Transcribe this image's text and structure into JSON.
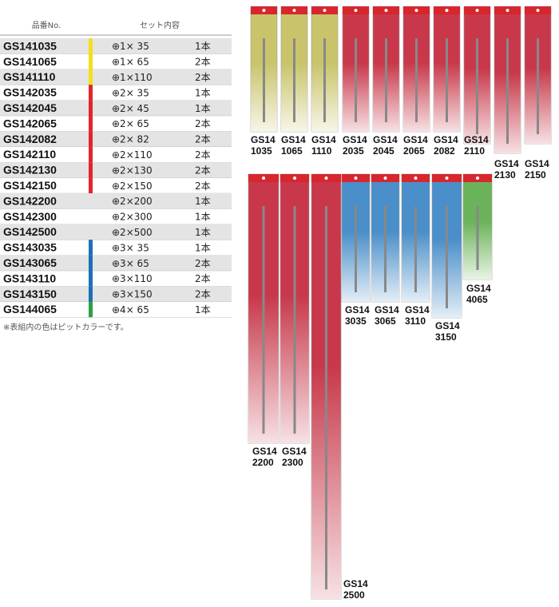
{
  "table": {
    "headers": [
      "品番No.",
      "セット内容"
    ],
    "rows": [
      {
        "code": "GS141035",
        "spec": "⊕1× 35",
        "qty": "1本",
        "color": "#f2e01a"
      },
      {
        "code": "GS141065",
        "spec": "⊕1× 65",
        "qty": "2本",
        "color": "#f2e01a"
      },
      {
        "code": "GS141110",
        "spec": "⊕1×110",
        "qty": "2本",
        "color": "#f2e01a"
      },
      {
        "code": "GS142035",
        "spec": "⊕2× 35",
        "qty": "1本",
        "color": "#e0262b"
      },
      {
        "code": "GS142045",
        "spec": "⊕2× 45",
        "qty": "1本",
        "color": "#e0262b"
      },
      {
        "code": "GS142065",
        "spec": "⊕2× 65",
        "qty": "2本",
        "color": "#e0262b"
      },
      {
        "code": "GS142082",
        "spec": "⊕2× 82",
        "qty": "2本",
        "color": "#e0262b"
      },
      {
        "code": "GS142110",
        "spec": "⊕2×110",
        "qty": "2本",
        "color": "#e0262b"
      },
      {
        "code": "GS142130",
        "spec": "⊕2×130",
        "qty": "2本",
        "color": "#e0262b"
      },
      {
        "code": "GS142150",
        "spec": "⊕2×150",
        "qty": "2本",
        "color": "#e0262b"
      },
      {
        "code": "GS142200",
        "spec": "⊕2×200",
        "qty": "1本"
      },
      {
        "code": "GS142300",
        "spec": "⊕2×300",
        "qty": "1本"
      },
      {
        "code": "GS142500",
        "spec": "⊕2×500",
        "qty": "1本"
      },
      {
        "code": "GS143035",
        "spec": "⊕3× 35",
        "qty": "1本",
        "color": "#1d6fb8"
      },
      {
        "code": "GS143065",
        "spec": "⊕3× 65",
        "qty": "2本",
        "color": "#1d6fb8"
      },
      {
        "code": "GS143110",
        "spec": "⊕3×110",
        "qty": "2本",
        "color": "#1d6fb8"
      },
      {
        "code": "GS143150",
        "spec": "⊕3×150",
        "qty": "2本",
        "color": "#1d6fb8"
      },
      {
        "code": "GS144065",
        "spec": "⊕4× 65",
        "qty": "1本",
        "color": "#2ea043"
      }
    ],
    "note": "※表組内の色はピットカラーです。"
  },
  "products": [
    {
      "lines": [
        "GS14",
        "1035"
      ],
      "color": "#c9c46a"
    },
    {
      "lines": [
        "GS14",
        "1065"
      ],
      "color": "#c9c46a"
    },
    {
      "lines": [
        "GS14",
        "1110"
      ],
      "color": "#c9c46a"
    },
    {
      "lines": [
        "GS14",
        "2035"
      ],
      "color": "#c8384a"
    },
    {
      "lines": [
        "GS14",
        "2045"
      ],
      "color": "#c8384a"
    },
    {
      "lines": [
        "GS14",
        "2065"
      ],
      "color": "#c8384a"
    },
    {
      "lines": [
        "GS14",
        "2082"
      ],
      "color": "#c8384a"
    },
    {
      "lines": [
        "GS14",
        "2110"
      ],
      "color": "#c8384a"
    },
    {
      "lines": [
        "GS14",
        "2130"
      ],
      "color": "#c8384a"
    },
    {
      "lines": [
        "GS14",
        "2150"
      ],
      "color": "#c8384a"
    },
    {
      "lines": [
        "GS14",
        "2200"
      ],
      "color": "#c8384a"
    },
    {
      "lines": [
        "GS14",
        "2300"
      ],
      "color": "#c8384a"
    },
    {
      "lines": [
        "GS14",
        "2500"
      ],
      "color": "#c8384a"
    },
    {
      "lines": [
        "GS14",
        "3035"
      ],
      "color": "#4a8fc9"
    },
    {
      "lines": [
        "GS14",
        "3065"
      ],
      "color": "#4a8fc9"
    },
    {
      "lines": [
        "GS14",
        "3110"
      ],
      "color": "#4a8fc9"
    },
    {
      "lines": [
        "GS14",
        "3150"
      ],
      "color": "#4a8fc9"
    },
    {
      "lines": [
        "GS14",
        "4065"
      ],
      "color": "#6bb35a"
    }
  ]
}
